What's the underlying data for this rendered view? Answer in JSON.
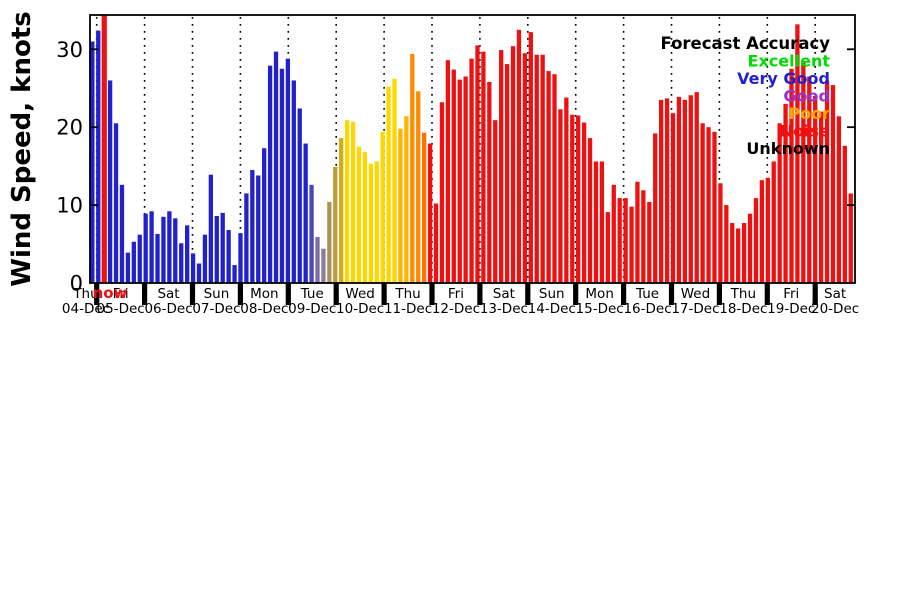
{
  "chart_data": {
    "type": "bar",
    "title": "",
    "ylabel": "Wind Speed, knots",
    "xlabel": "",
    "ylim": [
      0,
      34.4
    ],
    "yticks": [
      0,
      10,
      20,
      30
    ],
    "grid": "vertical-dotted-day-boundaries",
    "legend_position": "top-right",
    "legend": {
      "title": "Forecast Accuracy",
      "title_color": "#000000",
      "entries": [
        {
          "label": "Excellent",
          "color": "#00DC00"
        },
        {
          "label": "Very Good",
          "color": "#2222CC"
        },
        {
          "label": "Good",
          "color": "#9933CC"
        },
        {
          "label": "Poor",
          "color": "#FFA500"
        },
        {
          "label": "Noise",
          "color": "#EE1111"
        },
        {
          "label": "Unknown",
          "color": "#000000"
        }
      ]
    },
    "now_label": "now",
    "now_color": "#EE1111",
    "now_slot": 2,
    "bars_per_day": 8,
    "days": [
      {
        "weekday": "Thu",
        "date": "04-Dec"
      },
      {
        "weekday": "Fri",
        "date": "05-Dec"
      },
      {
        "weekday": "Sat",
        "date": "06-Dec"
      },
      {
        "weekday": "Sun",
        "date": "07-Dec"
      },
      {
        "weekday": "Mon",
        "date": "08-Dec"
      },
      {
        "weekday": "Tue",
        "date": "09-Dec"
      },
      {
        "weekday": "Wed",
        "date": "10-Dec"
      },
      {
        "weekday": "Thu",
        "date": "11-Dec"
      },
      {
        "weekday": "Fri",
        "date": "12-Dec"
      },
      {
        "weekday": "Sat",
        "date": "13-Dec"
      },
      {
        "weekday": "Sun",
        "date": "14-Dec"
      },
      {
        "weekday": "Mon",
        "date": "15-Dec"
      },
      {
        "weekday": "Tue",
        "date": "16-Dec"
      },
      {
        "weekday": "Wed",
        "date": "17-Dec"
      },
      {
        "weekday": "Thu",
        "date": "18-Dec"
      },
      {
        "weekday": "Fri",
        "date": "19-Dec"
      },
      {
        "weekday": "Sat",
        "date": "20-Dec"
      }
    ],
    "palette": {
      "vg": "#2222CC",
      "t1": "#4B48BE",
      "t3": "#7A6FA6",
      "t4": "#8B7D9B",
      "t5": "#AB9258",
      "t6": "#BC9D3E",
      "t7": "#CFAE12",
      "poor": "#FFD700",
      "amber": "#FFB400",
      "orange": "#FF8C00",
      "orange2": "#FF7300",
      "noise": "#EE1111",
      "now": "#EE1111"
    },
    "bars": [
      [
        31.0,
        "vg"
      ],
      [
        32.4,
        "vg"
      ],
      [
        null,
        "now"
      ],
      [
        26.0,
        "vg"
      ],
      [
        20.5,
        "vg"
      ],
      [
        12.6,
        "vg"
      ],
      [
        3.9,
        "vg"
      ],
      [
        5.3,
        "vg"
      ],
      [
        6.2,
        "vg"
      ],
      [
        8.9,
        "vg"
      ],
      [
        9.2,
        "vg"
      ],
      [
        6.3,
        "vg"
      ],
      [
        8.5,
        "vg"
      ],
      [
        9.2,
        "vg"
      ],
      [
        8.3,
        "vg"
      ],
      [
        5.1,
        "vg"
      ],
      [
        7.4,
        "vg"
      ],
      [
        3.8,
        "vg"
      ],
      [
        2.5,
        "vg"
      ],
      [
        6.2,
        "vg"
      ],
      [
        13.9,
        "vg"
      ],
      [
        8.6,
        "vg"
      ],
      [
        9.0,
        "vg"
      ],
      [
        6.8,
        "vg"
      ],
      [
        2.3,
        "vg"
      ],
      [
        6.4,
        "vg"
      ],
      [
        11.5,
        "vg"
      ],
      [
        14.5,
        "vg"
      ],
      [
        13.8,
        "vg"
      ],
      [
        17.3,
        "vg"
      ],
      [
        27.9,
        "vg"
      ],
      [
        29.7,
        "vg"
      ],
      [
        27.5,
        "vg"
      ],
      [
        28.8,
        "vg"
      ],
      [
        26.0,
        "vg"
      ],
      [
        22.4,
        "vg"
      ],
      [
        17.9,
        "vg"
      ],
      [
        12.6,
        "t1"
      ],
      [
        5.9,
        "t3"
      ],
      [
        4.4,
        "t4"
      ],
      [
        10.4,
        "t5"
      ],
      [
        14.9,
        "t6"
      ],
      [
        18.6,
        "t7"
      ],
      [
        20.9,
        "poor"
      ],
      [
        20.7,
        "poor"
      ],
      [
        17.5,
        "poor"
      ],
      [
        16.8,
        "poor"
      ],
      [
        15.3,
        "poor"
      ],
      [
        15.6,
        "poor"
      ],
      [
        19.4,
        "poor"
      ],
      [
        25.2,
        "poor"
      ],
      [
        26.2,
        "poor"
      ],
      [
        19.8,
        "amber"
      ],
      [
        21.4,
        "amber"
      ],
      [
        29.4,
        "orange"
      ],
      [
        24.6,
        "orange"
      ],
      [
        19.3,
        "orange2"
      ],
      [
        17.9,
        "noise"
      ],
      [
        10.2,
        "noise"
      ],
      [
        23.2,
        "noise"
      ],
      [
        28.6,
        "noise"
      ],
      [
        27.4,
        "noise"
      ],
      [
        26.1,
        "noise"
      ],
      [
        26.5,
        "noise"
      ],
      [
        28.8,
        "noise"
      ],
      [
        30.5,
        "noise"
      ],
      [
        29.7,
        "noise"
      ],
      [
        25.8,
        "noise"
      ],
      [
        20.9,
        "noise"
      ],
      [
        29.9,
        "noise"
      ],
      [
        28.1,
        "noise"
      ],
      [
        30.4,
        "noise"
      ],
      [
        32.5,
        "noise"
      ],
      [
        29.5,
        "noise"
      ],
      [
        32.2,
        "noise"
      ],
      [
        29.3,
        "noise"
      ],
      [
        29.3,
        "noise"
      ],
      [
        27.2,
        "noise"
      ],
      [
        26.8,
        "noise"
      ],
      [
        22.3,
        "noise"
      ],
      [
        23.8,
        "noise"
      ],
      [
        21.6,
        "noise"
      ],
      [
        21.5,
        "noise"
      ],
      [
        20.6,
        "noise"
      ],
      [
        18.6,
        "noise"
      ],
      [
        15.6,
        "noise"
      ],
      [
        15.6,
        "noise"
      ],
      [
        9.1,
        "noise"
      ],
      [
        12.6,
        "noise"
      ],
      [
        10.9,
        "noise"
      ],
      [
        10.9,
        "noise"
      ],
      [
        9.8,
        "noise"
      ],
      [
        13.0,
        "noise"
      ],
      [
        11.9,
        "noise"
      ],
      [
        10.4,
        "noise"
      ],
      [
        19.2,
        "noise"
      ],
      [
        23.5,
        "noise"
      ],
      [
        23.7,
        "noise"
      ],
      [
        21.8,
        "noise"
      ],
      [
        23.9,
        "noise"
      ],
      [
        23.5,
        "noise"
      ],
      [
        24.1,
        "noise"
      ],
      [
        24.5,
        "noise"
      ],
      [
        20.5,
        "noise"
      ],
      [
        20.0,
        "noise"
      ],
      [
        19.4,
        "noise"
      ],
      [
        12.8,
        "noise"
      ],
      [
        10.0,
        "noise"
      ],
      [
        7.7,
        "noise"
      ],
      [
        7.0,
        "noise"
      ],
      [
        7.7,
        "noise"
      ],
      [
        8.9,
        "noise"
      ],
      [
        10.9,
        "noise"
      ],
      [
        13.2,
        "noise"
      ],
      [
        13.5,
        "noise"
      ],
      [
        15.6,
        "noise"
      ],
      [
        20.5,
        "noise"
      ],
      [
        23.0,
        "noise"
      ],
      [
        27.5,
        "noise"
      ],
      [
        33.2,
        "noise"
      ],
      [
        28.5,
        "noise"
      ],
      [
        26.5,
        "noise"
      ],
      [
        24.0,
        "noise"
      ],
      [
        22.0,
        "noise"
      ],
      [
        26.0,
        "noise"
      ],
      [
        25.4,
        "noise"
      ],
      [
        21.4,
        "noise"
      ],
      [
        17.6,
        "noise"
      ],
      [
        11.5,
        "noise"
      ]
    ]
  }
}
